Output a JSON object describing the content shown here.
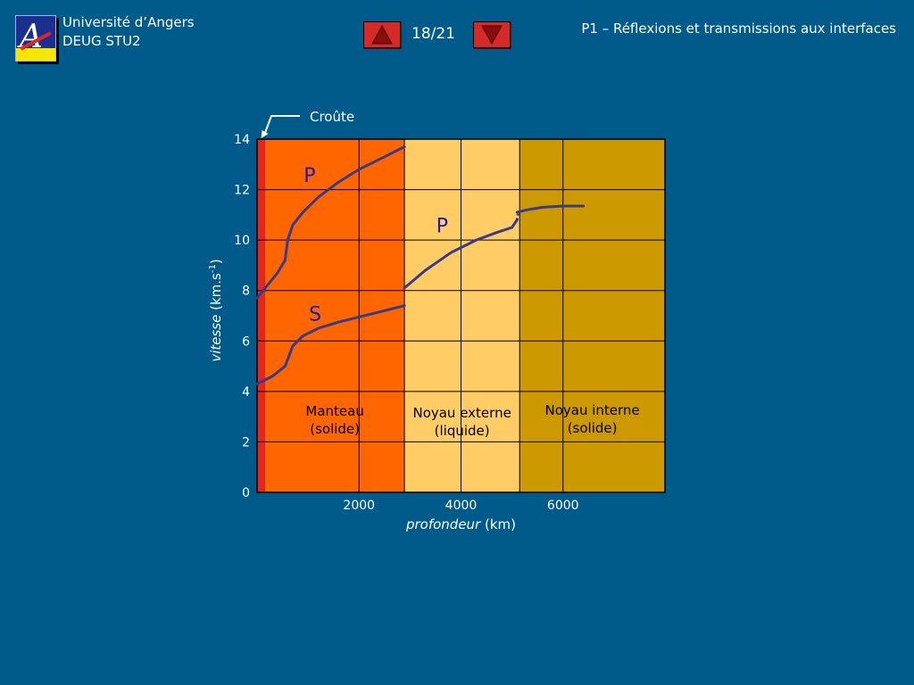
{
  "header": {
    "institution": "Université d’Angers",
    "course": "DEUG STU2",
    "page_counter": "18/21",
    "slide_title": "P1 – Réflexions et transmissions aux interfaces"
  },
  "icons": {
    "prev": "triangle-up-icon",
    "next": "triangle-down-icon",
    "logo": "university-logo"
  },
  "colors": {
    "background": "#005a8a",
    "crust": "#e3271e",
    "mantle": "#ff6600",
    "outer_core": "#ffcc66",
    "inner_core": "#cc9900",
    "curves": "#3a3a8c",
    "nav_button": "#d52a2a"
  },
  "chart_data": {
    "type": "line",
    "xlabel": {
      "italic": "profondeur",
      "unit": " (km)"
    },
    "ylabel": {
      "italic": "vitesse",
      "unit": " (km.s",
      "sup": "-1",
      "close": ")"
    },
    "xlim": [
      0,
      8000
    ],
    "ylim": [
      0,
      14
    ],
    "x_ticks": [
      2000,
      4000,
      6000
    ],
    "y_ticks": [
      0,
      2,
      4,
      6,
      8,
      10,
      12,
      14
    ],
    "grid": true,
    "zones": [
      {
        "from": 0,
        "to": 160,
        "color": "#e3271e",
        "label": []
      },
      {
        "from": 160,
        "to": 2890,
        "color": "#ff6600",
        "label": [
          "Manteau",
          "(solide)"
        ]
      },
      {
        "from": 2890,
        "to": 5150,
        "color": "#ffcc66",
        "label": [
          "Noyau externe",
          "(liquide)"
        ]
      },
      {
        "from": 5150,
        "to": 8000,
        "color": "#cc9900",
        "label": [
          "Noyau interne",
          "(solide)"
        ]
      }
    ],
    "annotation": {
      "text": "Croûte",
      "x": 80
    },
    "series": [
      {
        "name": "P",
        "segments": [
          [
            [
              0,
              7.7
            ],
            [
              200,
              8.2
            ],
            [
              400,
              8.7
            ],
            [
              550,
              9.2
            ],
            [
              600,
              10.0
            ],
            [
              700,
              10.6
            ],
            [
              900,
              11.1
            ],
            [
              1200,
              11.7
            ],
            [
              1600,
              12.3
            ],
            [
              2000,
              12.8
            ],
            [
              2500,
              13.3
            ],
            [
              2890,
              13.7
            ]
          ],
          [
            [
              2890,
              8.1
            ],
            [
              3300,
              8.8
            ],
            [
              3800,
              9.5
            ],
            [
              4300,
              10.0
            ],
            [
              4700,
              10.3
            ],
            [
              5000,
              10.5
            ],
            [
              5100,
              10.8
            ]
          ],
          [
            [
              5100,
              11.1
            ],
            [
              5300,
              11.2
            ],
            [
              5600,
              11.3
            ],
            [
              6000,
              11.35
            ],
            [
              6400,
              11.35
            ]
          ]
        ],
        "label_at": [
          1030,
          12.3
        ]
      },
      {
        "name": "P",
        "segments": [],
        "label_at": [
          3630,
          10.3
        ]
      },
      {
        "name": "S",
        "segments": [
          [
            [
              0,
              4.3
            ],
            [
              300,
              4.6
            ],
            [
              550,
              5.0
            ],
            [
              700,
              5.8
            ],
            [
              900,
              6.2
            ],
            [
              1200,
              6.5
            ],
            [
              1600,
              6.75
            ],
            [
              2000,
              6.95
            ],
            [
              2500,
              7.2
            ],
            [
              2890,
              7.4
            ]
          ]
        ],
        "label_at": [
          1140,
          6.8
        ]
      }
    ]
  }
}
